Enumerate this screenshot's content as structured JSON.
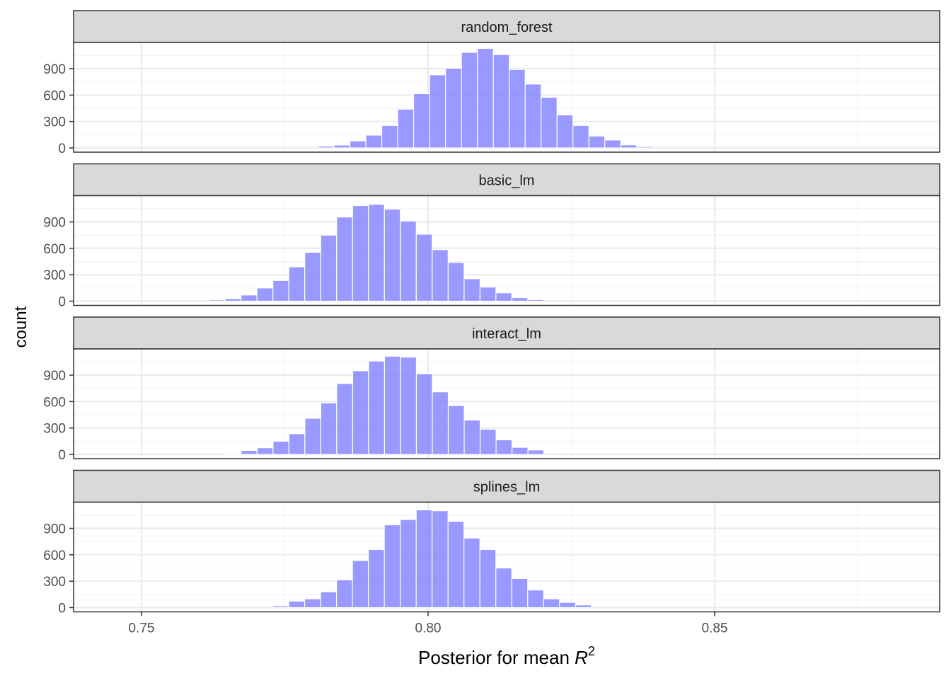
{
  "chart_data": {
    "type": "bar",
    "subtype": "faceted-histogram",
    "title": "",
    "xlabel": "Posterior for mean R^2",
    "xlabel_parts": {
      "text": "Posterior for mean ",
      "italic": "R",
      "superscript": "2"
    },
    "ylabel": "count",
    "xlim": [
      0.738,
      0.8855
    ],
    "ylim": [
      0,
      1180
    ],
    "x_ticks": [
      0.75,
      0.8,
      0.85
    ],
    "x_tick_labels": [
      "0.75",
      "0.80",
      "0.85"
    ],
    "y_ticks": [
      0,
      300,
      600,
      900
    ],
    "y_tick_labels": [
      "0",
      "300",
      "600",
      "900"
    ],
    "grid": true,
    "legend": "none",
    "bin_width": 0.00278,
    "bar_color": "#8080ff",
    "bar_opacity": 0.8,
    "facets": [
      {
        "name": "random_forest",
        "bin_start": 0.7808,
        "values": [
          20,
          33,
          80,
          145,
          255,
          440,
          615,
          830,
          905,
          1085,
          1130,
          1060,
          890,
          725,
          575,
          375,
          255,
          135,
          90,
          35,
          15
        ]
      },
      {
        "name": "basic_lm",
        "bin_start": 0.7618,
        "values": [
          15,
          28,
          70,
          150,
          235,
          390,
          555,
          750,
          955,
          1085,
          1100,
          1045,
          910,
          760,
          585,
          440,
          255,
          160,
          95,
          40,
          18
        ]
      },
      {
        "name": "interact_lm",
        "bin_start": 0.7646,
        "values": [
          5,
          45,
          75,
          150,
          235,
          410,
          585,
          805,
          950,
          1060,
          1115,
          1105,
          915,
          710,
          555,
          390,
          285,
          165,
          80,
          50,
          12
        ]
      },
      {
        "name": "splines_lm",
        "bin_start": 0.7729,
        "values": [
          20,
          75,
          100,
          180,
          315,
          535,
          660,
          940,
          1000,
          1110,
          1100,
          980,
          790,
          660,
          450,
          330,
          200,
          100,
          60,
          30
        ]
      }
    ],
    "edge_bars": {
      "note": "near-zero light grey bars at panel extremes",
      "left": {
        "x_start": 0.7381,
        "x_end": 0.7446,
        "count": 3
      },
      "right": {
        "x_start": 0.8823,
        "x_end": 0.8888,
        "count": 3
      },
      "color": "#ebebeb"
    }
  },
  "panels": [
    {
      "strip_label": "random_forest"
    },
    {
      "strip_label": "basic_lm"
    },
    {
      "strip_label": "interact_lm"
    },
    {
      "strip_label": "splines_lm"
    }
  ],
  "axes": {
    "y_title": "count",
    "x_title_text": "Posterior for mean ",
    "x_title_italic": "R",
    "x_title_sup": "2"
  },
  "colors": {
    "strip_fill": "#d9d9d9",
    "strip_border": "#333333",
    "panel_border": "#333333",
    "grid_major": "#ebebeb",
    "grid_minor": "#f3f3f3",
    "axis_text": "#4d4d4d",
    "title_text": "#000000"
  }
}
